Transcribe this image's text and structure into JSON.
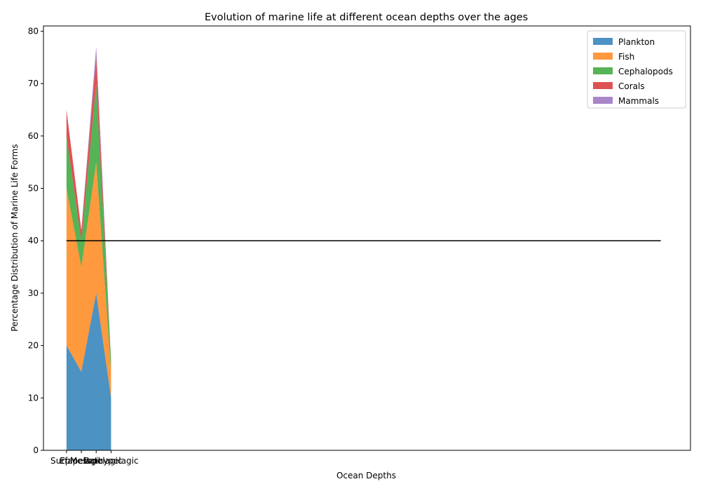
{
  "chart_data": {
    "type": "area",
    "stacked": true,
    "title": "Evolution of marine life at different ocean depths over the ages",
    "xlabel": "Ocean Depths",
    "ylabel": "Percentage Distribution of Marine Life Forms",
    "categories": [
      "Surface",
      "Epipelagic",
      "Mesopelagic",
      "Bathypelagic"
    ],
    "series": [
      {
        "name": "Plankton",
        "values": [
          20,
          15,
          30,
          10
        ],
        "color": "#1f77b4"
      },
      {
        "name": "Fish",
        "values": [
          30,
          20,
          25,
          5
        ],
        "color": "#ff7f0e"
      },
      {
        "name": "Cephalopods",
        "values": [
          10,
          5,
          15,
          2
        ],
        "color": "#2ca02c"
      },
      {
        "name": "Corals",
        "values": [
          5,
          2,
          5,
          0
        ],
        "color": "#d62728"
      },
      {
        "name": "Mammals",
        "values": [
          0,
          0,
          2,
          0
        ],
        "color": "#9467bd"
      }
    ],
    "area_opacity": 0.8,
    "reference_line": {
      "y": 40,
      "x_start": 0,
      "x_end": 40,
      "color": "#000000"
    },
    "xlim": [
      -1.55,
      42.0
    ],
    "ylim": [
      0,
      81
    ],
    "yticks": [
      0,
      10,
      20,
      30,
      40,
      50,
      60,
      70,
      80
    ],
    "grid": false,
    "legend_position": "top-right"
  }
}
